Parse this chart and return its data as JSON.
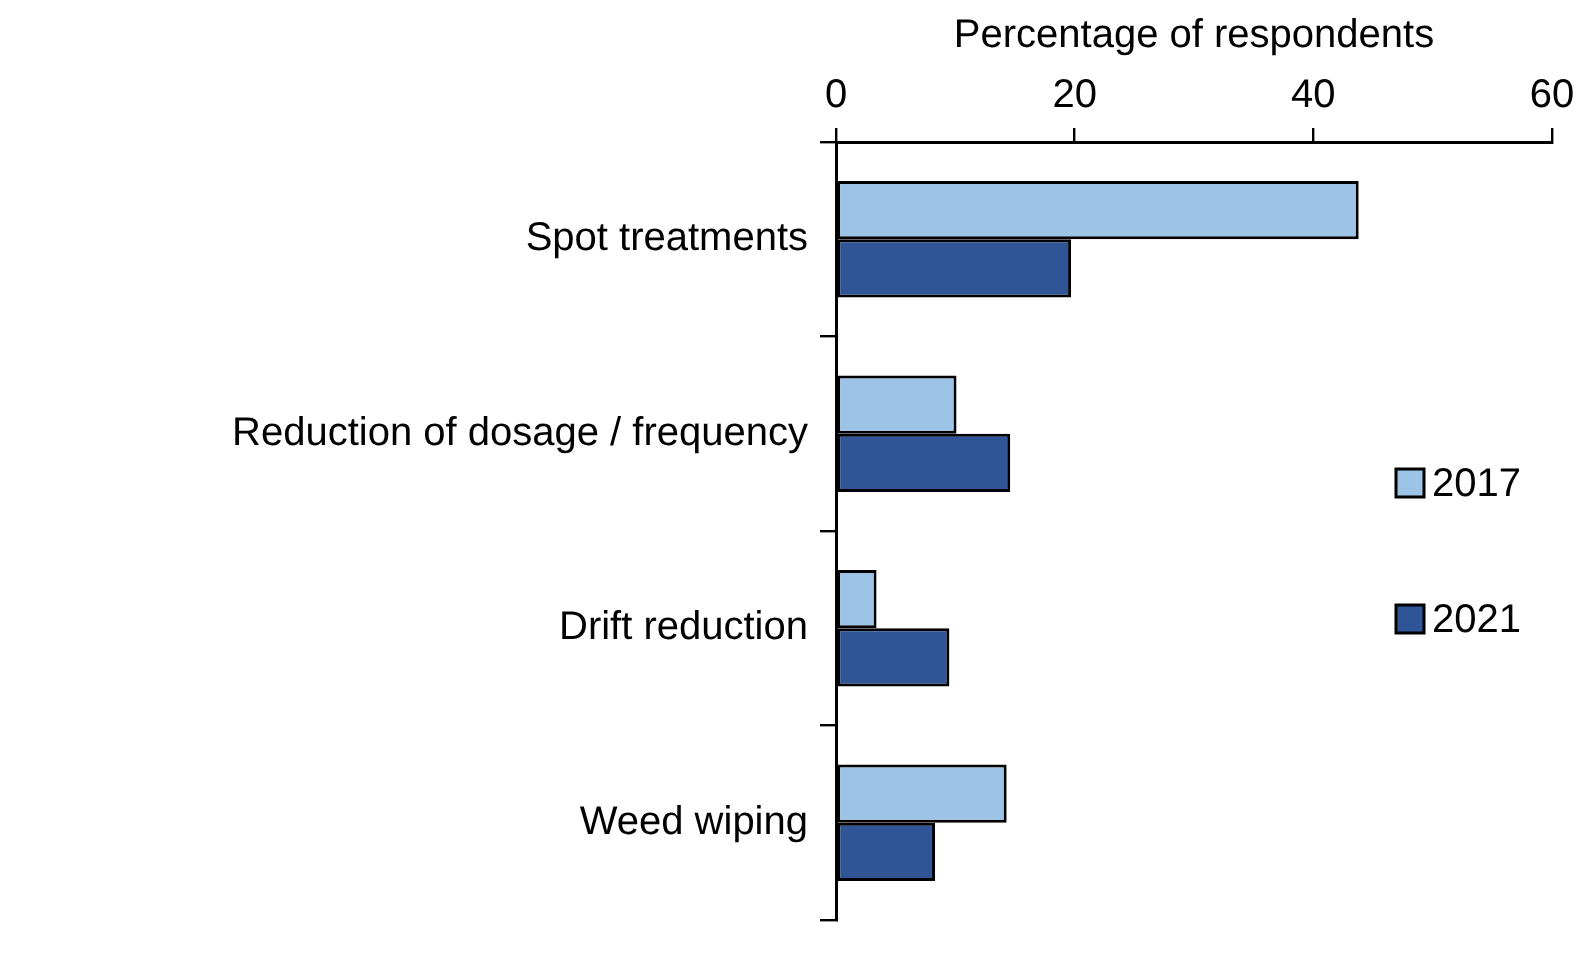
{
  "chart_data": {
    "type": "bar",
    "orientation": "horizontal",
    "xlabel": "Percentage of respondents",
    "categories": [
      "Spot treatments",
      "Reduction of dosage / frequency",
      "Drift reduction",
      "Weed wiping"
    ],
    "series": [
      {
        "name": "2017",
        "color": "#9dc3e6",
        "values": [
          43.8,
          10.1,
          3.4,
          14.3
        ]
      },
      {
        "name": "2021",
        "color": "#2f5597",
        "values": [
          19.7,
          14.6,
          9.5,
          8.3
        ]
      }
    ],
    "xlim": [
      0,
      60
    ],
    "xticks": [
      0,
      20,
      40,
      60
    ],
    "grid": false,
    "legend": "right"
  }
}
